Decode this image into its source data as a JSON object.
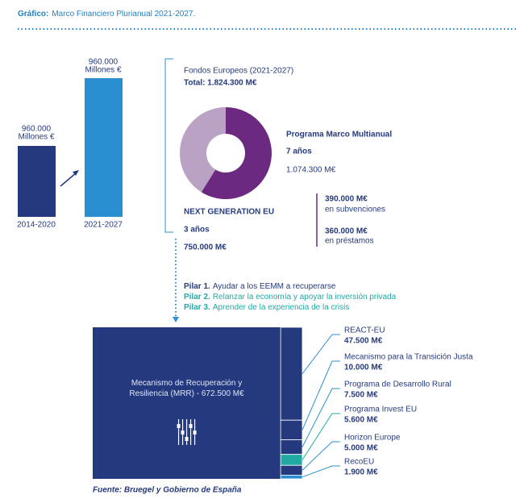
{
  "header": {
    "label": "Gráfico:",
    "title": "Marco Financiero Plurianual 2021-2027."
  },
  "periods": [
    {
      "amount": "960.000",
      "unit": "Millones €",
      "label": "2014-2020"
    },
    {
      "amount": "960.000",
      "unit": "Millones €",
      "label": "2021-2027"
    }
  ],
  "funds": {
    "title": "Fondos Europeos (2021-2027)",
    "total": "Total: 1.824.300 M€",
    "mff_years": "7 años",
    "ngeu_years": "3 años",
    "grants": "390.000 M€",
    "grants_label": "en subvenciones",
    "loans": "360.000 M€",
    "loans_label": "en préstamos"
  },
  "pillars": [
    {
      "name": "Pilar 1.",
      "text": "Ayudar a los EEMM a recuperarse"
    },
    {
      "name": "Pilar 2.",
      "text": "Relanzar la economía y apoyar la inversión privada"
    },
    {
      "name": "Pilar 3.",
      "text": "Aprender de la experiencia de la crisis"
    }
  ],
  "source": "Fuente: Bruegel y Gobierno de España",
  "chart_data": [
    {
      "type": "pie",
      "categories": [
        "Programa Marco Multianual",
        "NEXT GENERATION EU"
      ],
      "values": [
        1074300,
        750000
      ],
      "value_labels": [
        "1.074.300 M€",
        "750.000 M€"
      ],
      "colors": [
        "#6b2a7f",
        "#b9a2c3"
      ]
    },
    {
      "type": "treemap",
      "categories": [
        [
          "Mecanismo de Recuperación y",
          "Resiliencia (MRR) - 672.500 M€"
        ],
        "REACT-EU",
        "Mecanismo para la Transición Justa",
        "Programa de Desarrollo Rural",
        "Programa Invest EU",
        "Horizon Europe",
        "RecoEU"
      ],
      "values": [
        672500,
        47500,
        10000,
        7500,
        5600,
        5000,
        1900
      ],
      "value_labels": [
        null,
        "47.500 M€",
        "10.000 M€",
        "7.500 M€",
        "5.600 M€",
        "5.000 M€",
        "1.900 M€"
      ],
      "colors": [
        "#253a7e",
        "#253a7e",
        "#253a7e",
        "#253a7e",
        "#21a9a3",
        "#253a7e",
        "#2a8fd0"
      ]
    }
  ]
}
